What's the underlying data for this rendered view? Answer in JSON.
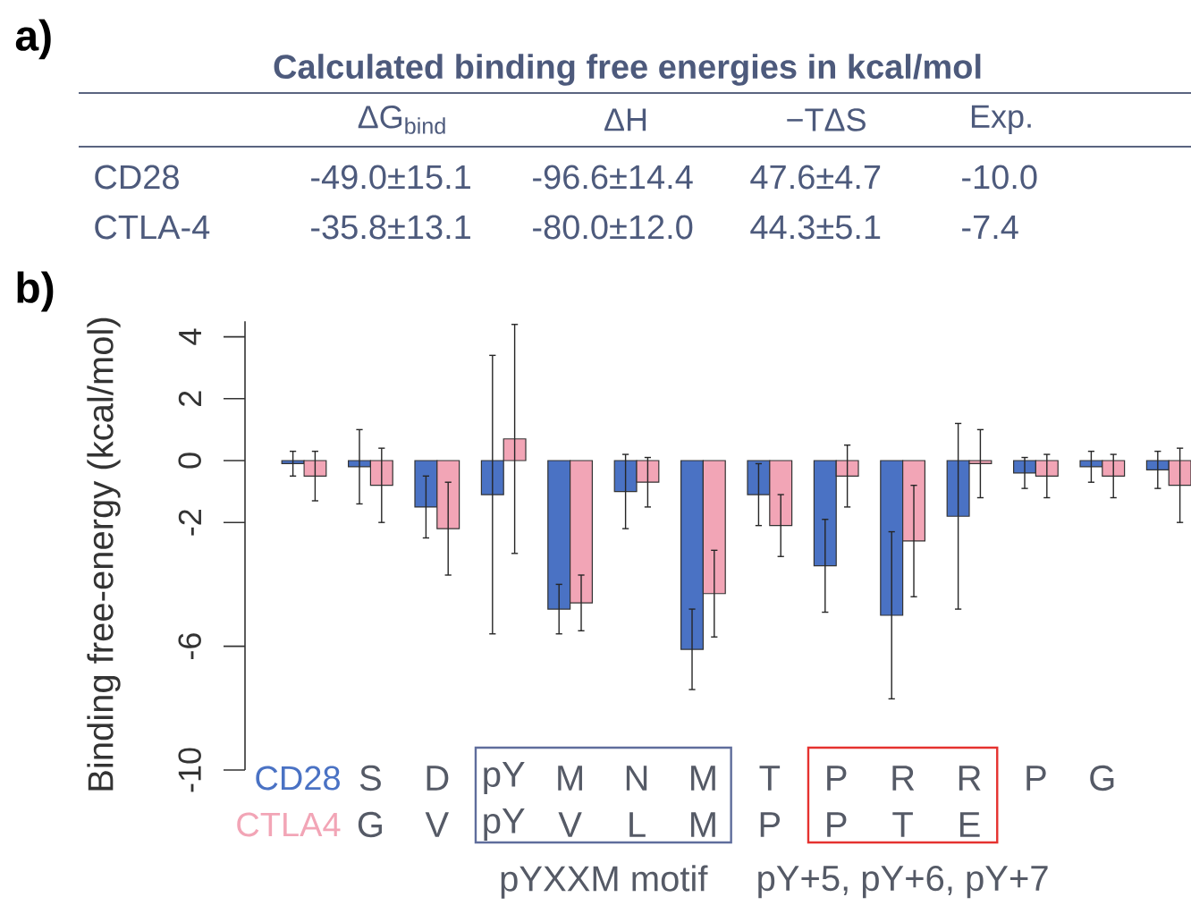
{
  "chart_data": [
    {
      "type": "other",
      "title": "a)",
      "subtitle": "Calculated binding free energies in kcal/mol",
      "categories": [
        "ΔG$_{bind}$",
        "ΔH",
        "−TΔS",
        "Exp."
      ],
      "y_categories": [
        "CD28",
        "CTLA-4"
      ],
      "cell_labels": [
        [
          "-49.0±15.1",
          "-96.6±14.4",
          "47.6±4.7",
          "-10.0"
        ],
        [
          "-35.8±13.1",
          "-80.0±12.0",
          "44.3±5.1",
          "-7.4"
        ]
      ]
    },
    {
      "type": "bar",
      "title": "b)",
      "ylabel": "Binding free-energy (kcal/mol)",
      "categories": [
        null,
        "S",
        "D",
        "pY",
        "M",
        "N",
        "M",
        "T",
        "P",
        "R",
        "R",
        "P",
        "G",
        null
      ],
      "series": [
        {
          "name": "CD28",
          "color": "#4a72c4",
          "values": [
            -0.1,
            -0.2,
            -1.5,
            -1.1,
            -4.8,
            -1.0,
            -6.1,
            -1.1,
            -3.4,
            -5.0,
            -1.8,
            -0.4,
            -0.2,
            -0.3
          ],
          "errors": [
            0.4,
            1.2,
            1.0,
            4.5,
            0.8,
            1.2,
            1.3,
            1.0,
            1.5,
            2.7,
            3.0,
            0.5,
            0.5,
            0.6
          ]
        },
        {
          "name": "CTLA4",
          "color": "#f2a5b6",
          "values": [
            -0.5,
            -0.8,
            -2.2,
            0.7,
            -4.6,
            -0.7,
            -4.3,
            -2.1,
            -0.5,
            -2.6,
            -0.1,
            -0.5,
            -0.5,
            -0.8
          ],
          "errors": [
            0.8,
            1.2,
            1.5,
            3.7,
            0.9,
            0.8,
            1.4,
            1.0,
            1.0,
            1.8,
            1.1,
            0.7,
            0.7,
            1.2
          ]
        }
      ],
      "ylim": [
        -10,
        4.5
      ],
      "yticks": [
        -10,
        -6,
        -2,
        0,
        2,
        4
      ],
      "legend": "bottom left",
      "annotations": [
        "G",
        "V",
        "pY",
        "V",
        "L",
        "M",
        "P",
        "P",
        "T",
        "E",
        "pYXXM motif",
        "pY+5, pY+6, pY+7"
      ]
    }
  ]
}
